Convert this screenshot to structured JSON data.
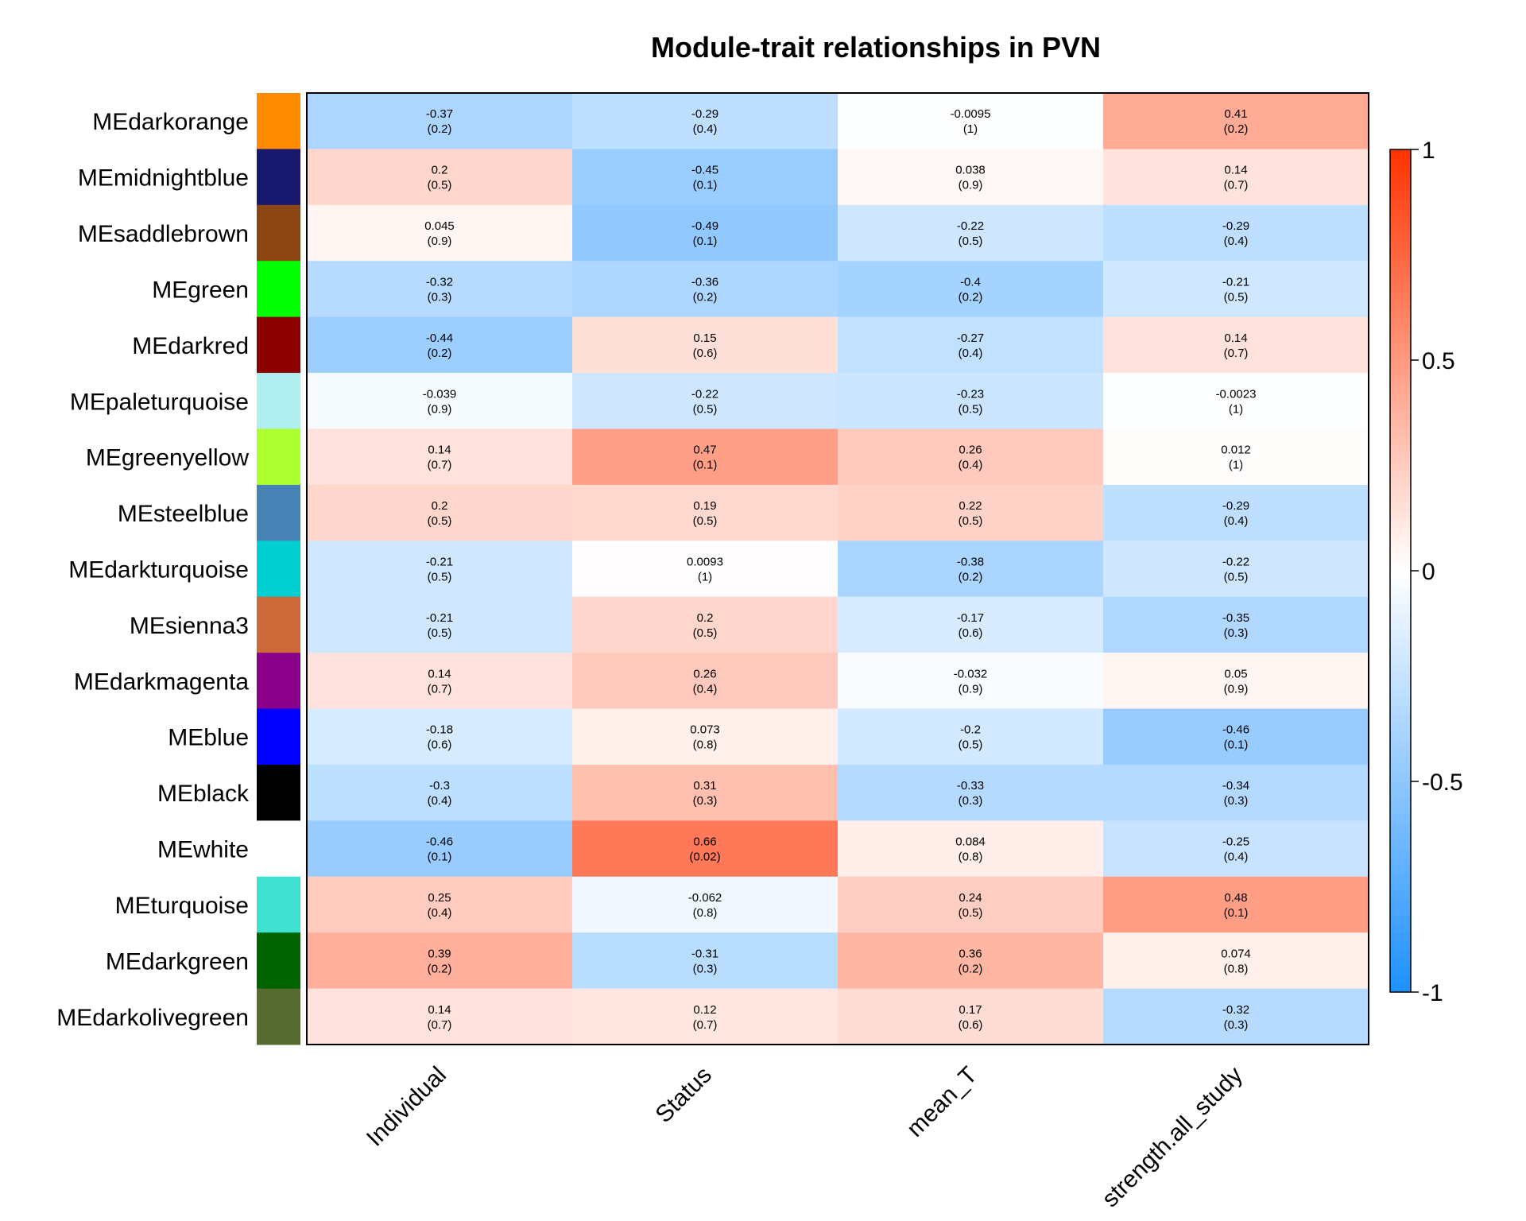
{
  "chart_data": {
    "type": "heatmap",
    "title": "Module-trait relationships in PVN",
    "columns": [
      "Individual",
      "Status",
      "mean_T",
      "strength.all_study"
    ],
    "rows": [
      {
        "label": "MEdarkorange",
        "color": "#FF8C00",
        "values": [
          -0.37,
          -0.29,
          -0.0095,
          0.41
        ],
        "texts": [
          "-0.37",
          "-0.29",
          "-0.0095",
          "0.41"
        ],
        "pvalues": [
          "(0.2)",
          "(0.4)",
          "(1)",
          "(0.2)"
        ]
      },
      {
        "label": "MEmidnightblue",
        "color": "#191970",
        "values": [
          0.2,
          -0.45,
          0.038,
          0.14
        ],
        "texts": [
          "0.2",
          "-0.45",
          "0.038",
          "0.14"
        ],
        "pvalues": [
          "(0.5)",
          "(0.1)",
          "(0.9)",
          "(0.7)"
        ]
      },
      {
        "label": "MEsaddlebrown",
        "color": "#8B4513",
        "values": [
          0.045,
          -0.49,
          -0.22,
          -0.29
        ],
        "texts": [
          "0.045",
          "-0.49",
          "-0.22",
          "-0.29"
        ],
        "pvalues": [
          "(0.9)",
          "(0.1)",
          "(0.5)",
          "(0.4)"
        ]
      },
      {
        "label": "MEgreen",
        "color": "#00FF00",
        "values": [
          -0.32,
          -0.36,
          -0.4,
          -0.21
        ],
        "texts": [
          "-0.32",
          "-0.36",
          "-0.4",
          "-0.21"
        ],
        "pvalues": [
          "(0.3)",
          "(0.2)",
          "(0.2)",
          "(0.5)"
        ]
      },
      {
        "label": "MEdarkred",
        "color": "#8B0000",
        "values": [
          -0.44,
          0.15,
          -0.27,
          0.14
        ],
        "texts": [
          "-0.44",
          "0.15",
          "-0.27",
          "0.14"
        ],
        "pvalues": [
          "(0.2)",
          "(0.6)",
          "(0.4)",
          "(0.7)"
        ]
      },
      {
        "label": "MEpaleturquoise",
        "color": "#AFEEEE",
        "values": [
          -0.039,
          -0.22,
          -0.23,
          -0.0023
        ],
        "texts": [
          "-0.039",
          "-0.22",
          "-0.23",
          "-0.0023"
        ],
        "pvalues": [
          "(0.9)",
          "(0.5)",
          "(0.5)",
          "(1)"
        ]
      },
      {
        "label": "MEgreenyellow",
        "color": "#ADFF2F",
        "values": [
          0.14,
          0.47,
          0.26,
          0.012
        ],
        "texts": [
          "0.14",
          "0.47",
          "0.26",
          "0.012"
        ],
        "pvalues": [
          "(0.7)",
          "(0.1)",
          "(0.4)",
          "(1)"
        ]
      },
      {
        "label": "MEsteelblue",
        "color": "#4682B4",
        "values": [
          0.2,
          0.19,
          0.22,
          -0.29
        ],
        "texts": [
          "0.2",
          "0.19",
          "0.22",
          "-0.29"
        ],
        "pvalues": [
          "(0.5)",
          "(0.5)",
          "(0.5)",
          "(0.4)"
        ]
      },
      {
        "label": "MEdarkturquoise",
        "color": "#00CED1",
        "values": [
          -0.21,
          0.0093,
          -0.38,
          -0.22
        ],
        "texts": [
          "-0.21",
          "0.0093",
          "-0.38",
          "-0.22"
        ],
        "pvalues": [
          "(0.5)",
          "(1)",
          "(0.2)",
          "(0.5)"
        ]
      },
      {
        "label": "MEsienna3",
        "color": "#CD6839",
        "values": [
          -0.21,
          0.2,
          -0.17,
          -0.35
        ],
        "texts": [
          "-0.21",
          "0.2",
          "-0.17",
          "-0.35"
        ],
        "pvalues": [
          "(0.5)",
          "(0.5)",
          "(0.6)",
          "(0.3)"
        ]
      },
      {
        "label": "MEdarkmagenta",
        "color": "#8B008B",
        "values": [
          0.14,
          0.26,
          -0.032,
          0.05
        ],
        "texts": [
          "0.14",
          "0.26",
          "-0.032",
          "0.05"
        ],
        "pvalues": [
          "(0.7)",
          "(0.4)",
          "(0.9)",
          "(0.9)"
        ]
      },
      {
        "label": "MEblue",
        "color": "#0000FF",
        "values": [
          -0.18,
          0.073,
          -0.2,
          -0.46
        ],
        "texts": [
          "-0.18",
          "0.073",
          "-0.2",
          "-0.46"
        ],
        "pvalues": [
          "(0.6)",
          "(0.8)",
          "(0.5)",
          "(0.1)"
        ]
      },
      {
        "label": "MEblack",
        "color": "#000000",
        "values": [
          -0.3,
          0.31,
          -0.33,
          -0.34
        ],
        "texts": [
          "-0.3",
          "0.31",
          "-0.33",
          "-0.34"
        ],
        "pvalues": [
          "(0.4)",
          "(0.3)",
          "(0.3)",
          "(0.3)"
        ]
      },
      {
        "label": "MEwhite",
        "color": "#FFFFFF",
        "values": [
          -0.46,
          0.66,
          0.084,
          -0.25
        ],
        "texts": [
          "-0.46",
          "0.66",
          "0.084",
          "-0.25"
        ],
        "pvalues": [
          "(0.1)",
          "(0.02)",
          "(0.8)",
          "(0.4)"
        ]
      },
      {
        "label": "MEturquoise",
        "color": "#40E0D0",
        "values": [
          0.25,
          -0.062,
          0.24,
          0.48
        ],
        "texts": [
          "0.25",
          "-0.062",
          "0.24",
          "0.48"
        ],
        "pvalues": [
          "(0.4)",
          "(0.8)",
          "(0.5)",
          "(0.1)"
        ]
      },
      {
        "label": "MEdarkgreen",
        "color": "#006400",
        "values": [
          0.39,
          -0.31,
          0.36,
          0.074
        ],
        "texts": [
          "0.39",
          "-0.31",
          "0.36",
          "0.074"
        ],
        "pvalues": [
          "(0.2)",
          "(0.3)",
          "(0.2)",
          "(0.8)"
        ]
      },
      {
        "label": "MEdarkolivegreen",
        "color": "#556B2F",
        "values": [
          0.14,
          0.12,
          0.17,
          -0.32
        ],
        "texts": [
          "0.14",
          "0.12",
          "0.17",
          "-0.32"
        ],
        "pvalues": [
          "(0.7)",
          "(0.7)",
          "(0.6)",
          "(0.3)"
        ]
      }
    ],
    "colorbar": {
      "ticks": [
        1,
        0.5,
        0,
        -0.5,
        -1
      ],
      "tick_labels": [
        "1",
        "0.5",
        "0",
        "-0.5",
        "-1"
      ],
      "range": [
        -1,
        1
      ],
      "low_color": "#1E90FF",
      "mid_color": "#FFFFFF",
      "high_color": "#FF3300"
    }
  }
}
